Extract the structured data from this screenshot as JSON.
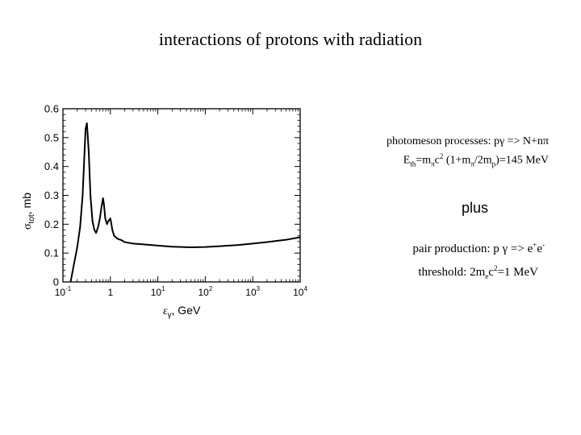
{
  "title": "interactions of protons with radiation",
  "annotations": {
    "photomeson_line1": "photomeson processes: pγ => N+nπ",
    "photomeson_line2": {
      "base": "E",
      "sub_th": "th",
      "eq": "=m",
      "sub_pi": "π",
      "c": "c",
      "sup2": "2",
      "paren": " (1+m",
      "sub_pi2": "π",
      "slash": "/2m",
      "sub_p": "p",
      "rest": ")=145 MeV"
    },
    "plus": "plus",
    "pair_line1": {
      "text": "pair production: p γ => e",
      "sup_plus": "+",
      "e": "e",
      "sup_minus": "-"
    },
    "pair_line2": {
      "text": "threshold: 2m",
      "sub_e": "e",
      "c": "c",
      "sup2": "2",
      "rest": "=1 MeV"
    }
  },
  "chart_data": {
    "type": "line",
    "xscale": "log",
    "xlim": [
      0.1,
      10000
    ],
    "ylim": [
      0,
      0.6
    ],
    "xticks": [
      "10",
      "1",
      "10",
      "10",
      "10",
      "10"
    ],
    "xtick_exponents": [
      "-1",
      "",
      "1",
      "2",
      "3",
      "4"
    ],
    "yticks": [
      "0",
      "0.1",
      "0.2",
      "0.3",
      "0.4",
      "0.5",
      "0.6"
    ],
    "xlabel": "ε",
    "xlabel_sub": "γ",
    "xlabel_unit": ", GeV",
    "ylabel": "σ",
    "ylabel_sub": "tot",
    "ylabel_unit": ", mb",
    "grid": false,
    "series": [
      {
        "x": [
          0.145,
          0.17,
          0.2,
          0.23,
          0.26,
          0.28,
          0.3,
          0.32,
          0.35,
          0.38,
          0.42,
          0.46,
          0.5,
          0.55,
          0.6,
          0.65,
          0.7,
          0.73,
          0.78,
          0.85,
          0.9,
          1.0,
          1.05,
          1.1,
          1.2,
          1.4,
          1.7,
          2,
          3,
          5,
          10,
          20,
          50,
          100,
          200,
          500,
          1000,
          2000,
          5000,
          10000
        ],
        "y": [
          0.0,
          0.06,
          0.12,
          0.19,
          0.3,
          0.42,
          0.53,
          0.55,
          0.45,
          0.3,
          0.21,
          0.18,
          0.17,
          0.19,
          0.22,
          0.26,
          0.29,
          0.27,
          0.22,
          0.2,
          0.21,
          0.22,
          0.2,
          0.18,
          0.16,
          0.15,
          0.145,
          0.138,
          0.133,
          0.13,
          0.126,
          0.122,
          0.12,
          0.121,
          0.124,
          0.128,
          0.133,
          0.138,
          0.146,
          0.155
        ]
      }
    ]
  }
}
